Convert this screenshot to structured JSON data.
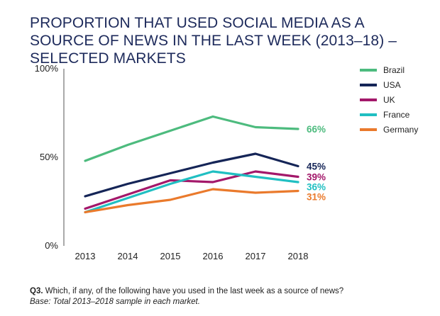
{
  "title": "PROPORTION THAT USED SOCIAL MEDIA AS A SOURCE OF NEWS IN THE LAST WEEK (2013–18) – SELECTED MARKETS",
  "footnote": {
    "question_number": "Q3.",
    "question": "Which, if any, of the following have you used in the last week as a source of news?",
    "base": "Base: Total 2013–2018 sample in each market."
  },
  "chart_data": {
    "type": "line",
    "title": "PROPORTION THAT USED SOCIAL MEDIA AS A SOURCE OF NEWS IN THE LAST WEEK (2013–18) – SELECTED MARKETS",
    "x": [
      "2013",
      "2014",
      "2015",
      "2016",
      "2017",
      "2018"
    ],
    "xlabel": "",
    "ylabel": "",
    "ylim": [
      0,
      100
    ],
    "yticks": [
      {
        "value": 0,
        "label": "0%"
      },
      {
        "value": 50,
        "label": "50%"
      },
      {
        "value": 100,
        "label": "100%"
      }
    ],
    "grid": false,
    "legend_position": "top-right",
    "series": [
      {
        "name": "Brazil",
        "color": "#4dbb7e",
        "values": [
          48,
          57,
          65,
          73,
          67,
          66
        ],
        "end_label": "66%"
      },
      {
        "name": "USA",
        "color": "#152557",
        "values": [
          28,
          35,
          41,
          47,
          52,
          45
        ],
        "end_label": "45%"
      },
      {
        "name": "UK",
        "color": "#a3186a",
        "values": [
          21,
          29,
          37,
          36,
          42,
          39
        ],
        "end_label": "39%"
      },
      {
        "name": "France",
        "color": "#20bfc2",
        "values": [
          19,
          27,
          35,
          42,
          39,
          36
        ],
        "end_label": "36%"
      },
      {
        "name": "Germany",
        "color": "#ea7a2c",
        "values": [
          19,
          23,
          26,
          32,
          30,
          31
        ],
        "end_label": "31%"
      }
    ]
  }
}
